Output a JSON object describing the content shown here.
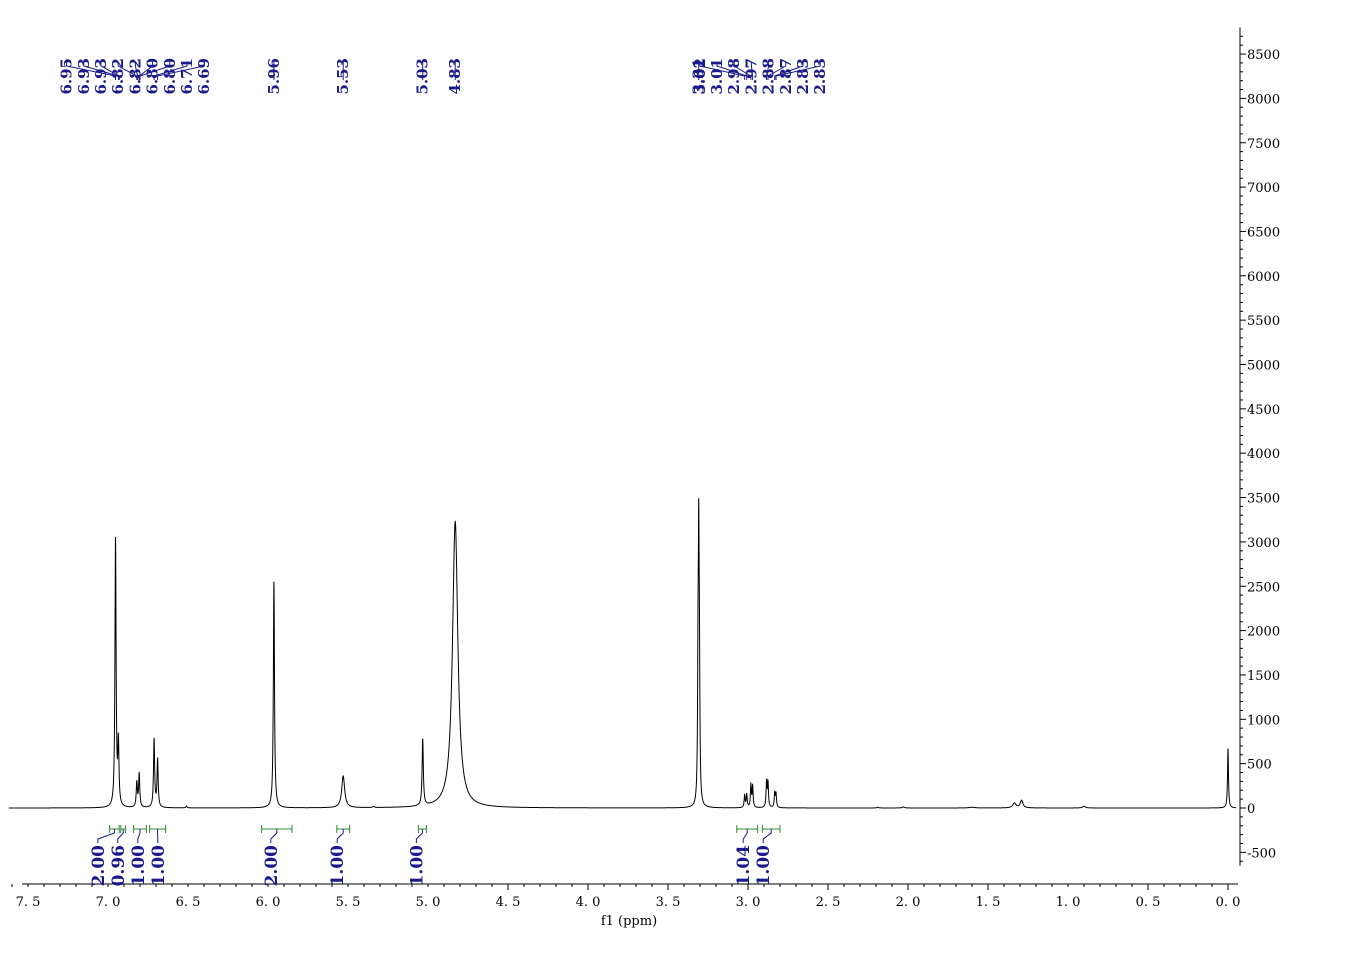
{
  "chart_data": {
    "type": "line",
    "xlabel": "f1 (ppm)",
    "ylabel": "",
    "xlim": [
      7.5,
      0.0
    ],
    "ylim": [
      -650,
      8800
    ],
    "x_ticks": [
      "7.5",
      "7.0",
      "6.5",
      "6.0",
      "5.5",
      "5.0",
      "4.5",
      "4.0",
      "3.5",
      "3.0",
      "2.5",
      "2.0",
      "1.5",
      "1.0",
      "0.5",
      "0.0"
    ],
    "y_ticks": [
      "8500",
      "8000",
      "7500",
      "7000",
      "6500",
      "6000",
      "5500",
      "5000",
      "4500",
      "4000",
      "3500",
      "3000",
      "2500",
      "2000",
      "1500",
      "1000",
      "500",
      "0",
      "-500"
    ],
    "peaks": [
      {
        "x": 6.953,
        "h": 3020,
        "w": 0.0042
      },
      {
        "x": 6.935,
        "h": 690,
        "w": 0.0042
      },
      {
        "x": 6.82,
        "h": 280,
        "w": 0.0042
      },
      {
        "x": 6.805,
        "h": 380,
        "w": 0.0042
      },
      {
        "x": 6.712,
        "h": 770,
        "w": 0.0042
      },
      {
        "x": 6.69,
        "h": 540,
        "w": 0.0042
      },
      {
        "x": 6.51,
        "h": 20,
        "w": 0.004
      },
      {
        "x": 5.963,
        "h": 2550,
        "w": 0.0042
      },
      {
        "x": 5.53,
        "h": 360,
        "w": 0.011
      },
      {
        "x": 5.34,
        "h": 12,
        "w": 0.006
      },
      {
        "x": 5.033,
        "h": 750,
        "w": 0.0045
      },
      {
        "x": 4.83,
        "h": 3230,
        "w": 0.02
      },
      {
        "x": 3.312,
        "h": 1550,
        "w": 0.0036
      },
      {
        "x": 3.308,
        "h": 2100,
        "w": 0.0026
      },
      {
        "x": 3.304,
        "h": 1560,
        "w": 0.0036
      },
      {
        "x": 3.021,
        "h": 140,
        "w": 0.0036
      },
      {
        "x": 3.008,
        "h": 150,
        "w": 0.0036
      },
      {
        "x": 2.982,
        "h": 250,
        "w": 0.0036
      },
      {
        "x": 2.971,
        "h": 240,
        "w": 0.0036
      },
      {
        "x": 2.884,
        "h": 290,
        "w": 0.0036
      },
      {
        "x": 2.875,
        "h": 270,
        "w": 0.0036
      },
      {
        "x": 2.833,
        "h": 160,
        "w": 0.0036
      },
      {
        "x": 2.825,
        "h": 150,
        "w": 0.0036
      },
      {
        "x": 2.19,
        "h": 10,
        "w": 0.005
      },
      {
        "x": 2.03,
        "h": 12,
        "w": 0.008
      },
      {
        "x": 1.6,
        "h": 8,
        "w": 0.02
      },
      {
        "x": 1.335,
        "h": 55,
        "w": 0.012
      },
      {
        "x": 1.29,
        "h": 85,
        "w": 0.01
      },
      {
        "x": 0.9,
        "h": 20,
        "w": 0.01
      },
      {
        "x": 0.0,
        "h": 670,
        "w": 0.0035
      }
    ],
    "peak_labels": [
      {
        "text": "6.95",
        "x": 6.953
      },
      {
        "text": "6.93",
        "x": 6.935
      },
      {
        "text": "6.93",
        "x": 6.93
      },
      {
        "text": "6.82",
        "x": 6.82
      },
      {
        "text": "6.82",
        "x": 6.815
      },
      {
        "text": "6.80",
        "x": 6.805
      },
      {
        "text": "6.80",
        "x": 6.8
      },
      {
        "text": "6.71",
        "x": 6.712
      },
      {
        "text": "6.69",
        "x": 6.69
      },
      {
        "text": "5.96",
        "x": 5.963
      },
      {
        "text": "5.53",
        "x": 5.53
      },
      {
        "text": "5.03",
        "x": 5.033
      },
      {
        "text": "4.83",
        "x": 4.83
      },
      {
        "text": "3.31",
        "x": 3.308
      },
      {
        "text": "3.02",
        "x": 3.021
      },
      {
        "text": "3.01",
        "x": 3.008
      },
      {
        "text": "2.98",
        "x": 2.982
      },
      {
        "text": "2.97",
        "x": 2.971
      },
      {
        "text": "2.88",
        "x": 2.884
      },
      {
        "text": "2.87",
        "x": 2.875
      },
      {
        "text": "2.83",
        "x": 2.833
      },
      {
        "text": "2.83",
        "x": 2.825
      }
    ],
    "integrals": [
      {
        "from": 6.99,
        "to": 6.93,
        "value": "2.00"
      },
      {
        "from": 6.92,
        "to": 6.89,
        "value": "0.96"
      },
      {
        "from": 6.84,
        "to": 6.76,
        "value": "1.00"
      },
      {
        "from": 6.74,
        "to": 6.64,
        "value": "1.00"
      },
      {
        "from": 6.04,
        "to": 5.85,
        "value": "2.00"
      },
      {
        "from": 5.57,
        "to": 5.49,
        "value": "1.00"
      },
      {
        "from": 5.06,
        "to": 5.01,
        "value": "1.00"
      },
      {
        "from": 3.07,
        "to": 2.94,
        "value": "1.04"
      },
      {
        "from": 2.91,
        "to": 2.8,
        "value": "1.00"
      }
    ],
    "colors": {
      "spectrum": "#000000",
      "labels": "#1a1a8c",
      "integral": "#2e8b2e"
    }
  }
}
